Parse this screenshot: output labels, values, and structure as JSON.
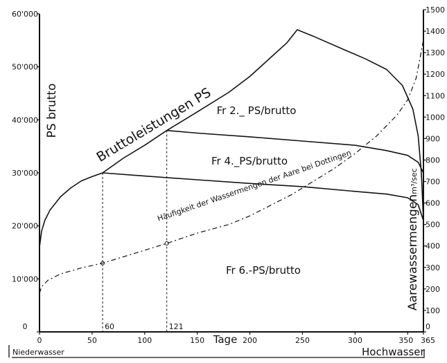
{
  "chart_data": {
    "type": "line",
    "title": "",
    "x": {
      "label": "Tage",
      "range": [
        0,
        365
      ],
      "ticks": [
        0,
        50,
        100,
        150,
        200,
        250,
        300,
        350,
        365
      ],
      "markers": [
        {
          "value": 60,
          "label": "60"
        },
        {
          "value": 121,
          "label": "121"
        }
      ],
      "left_note": "Niederwasser",
      "right_note": "Hochwasser"
    },
    "y_left": {
      "label": "PS brutto",
      "range": [
        0,
        60000
      ],
      "ticks": [
        0,
        10000,
        20000,
        30000,
        40000,
        50000,
        60000
      ],
      "tick_labels": [
        "0",
        "10'000",
        "20'000",
        "30'000",
        "40'000",
        "50'000",
        "60'000"
      ]
    },
    "y_right": {
      "label": "Aarewassermengen",
      "unit": "m³/sec",
      "range": [
        0,
        1500
      ],
      "ticks": [
        0,
        100,
        200,
        300,
        400,
        500,
        600,
        700,
        800,
        900,
        1000,
        1100,
        1200,
        1300,
        1400,
        1500
      ],
      "tick_labels": [
        "0",
        "100",
        "200",
        "300",
        "400",
        "500",
        "600",
        "700",
        "800",
        "900",
        "1000",
        "1100",
        "1200",
        "1300",
        "1400",
        "1500"
      ]
    },
    "series": [
      {
        "name": "Bruttoleistungen PS",
        "axis": "left",
        "style": "solid",
        "points": [
          [
            0,
            16000
          ],
          [
            2,
            19000
          ],
          [
            5,
            21000
          ],
          [
            10,
            23000
          ],
          [
            20,
            25500
          ],
          [
            30,
            27200
          ],
          [
            40,
            28500
          ],
          [
            50,
            29300
          ],
          [
            60,
            30000
          ],
          [
            80,
            32800
          ],
          [
            100,
            35200
          ],
          [
            121,
            38000
          ],
          [
            150,
            41500
          ],
          [
            180,
            45200
          ],
          [
            200,
            48200
          ],
          [
            220,
            51800
          ],
          [
            235,
            54500
          ],
          [
            245,
            57000
          ],
          [
            260,
            55800
          ],
          [
            290,
            53200
          ],
          [
            310,
            51500
          ],
          [
            330,
            49500
          ],
          [
            345,
            46500
          ],
          [
            355,
            42000
          ],
          [
            360,
            37000
          ],
          [
            363,
            30000
          ],
          [
            365,
            21000
          ]
        ]
      },
      {
        "name": "Häufigkeit der Wassermengen der Aare bei Döttingen",
        "axis": "right",
        "style": "dashed",
        "points": [
          [
            0,
            180
          ],
          [
            2,
            210
          ],
          [
            8,
            240
          ],
          [
            20,
            270
          ],
          [
            40,
            298
          ],
          [
            60,
            320
          ],
          [
            80,
            350
          ],
          [
            100,
            380
          ],
          [
            121,
            412
          ],
          [
            150,
            460
          ],
          [
            180,
            500
          ],
          [
            200,
            540
          ],
          [
            220,
            590
          ],
          [
            240,
            640
          ],
          [
            260,
            700
          ],
          [
            280,
            760
          ],
          [
            300,
            830
          ],
          [
            320,
            910
          ],
          [
            340,
            1010
          ],
          [
            350,
            1080
          ],
          [
            358,
            1180
          ],
          [
            362,
            1280
          ],
          [
            365,
            1360
          ]
        ]
      },
      {
        "name": "Fr 4.-PS/brutto",
        "axis": "left",
        "style": "solid",
        "points": [
          [
            60,
            30000
          ],
          [
            100,
            29400
          ],
          [
            150,
            28700
          ],
          [
            200,
            28000
          ],
          [
            250,
            27400
          ],
          [
            300,
            26500
          ],
          [
            330,
            26000
          ],
          [
            350,
            25300
          ],
          [
            360,
            24000
          ],
          [
            365,
            21000
          ]
        ]
      },
      {
        "name": "Fr 2.-PS/brutto",
        "axis": "left",
        "style": "solid",
        "points": [
          [
            121,
            38000
          ],
          [
            150,
            37500
          ],
          [
            200,
            36800
          ],
          [
            250,
            36000
          ],
          [
            300,
            35200
          ],
          [
            330,
            34200
          ],
          [
            350,
            33300
          ],
          [
            360,
            32000
          ],
          [
            365,
            30000
          ]
        ]
      }
    ],
    "curve_labels": [
      {
        "text": "Bruttoleistungen PS"
      },
      {
        "text": "Häufigkeit der Wassermengen der Aare bei Dottingen"
      }
    ],
    "region_labels": [
      {
        "text": "Fr 2._ PS/brutto"
      },
      {
        "text": "Fr 4._PS/brutto"
      },
      {
        "text": "Fr 6.-PS/brutto"
      }
    ],
    "grid": false,
    "legend": "none"
  }
}
